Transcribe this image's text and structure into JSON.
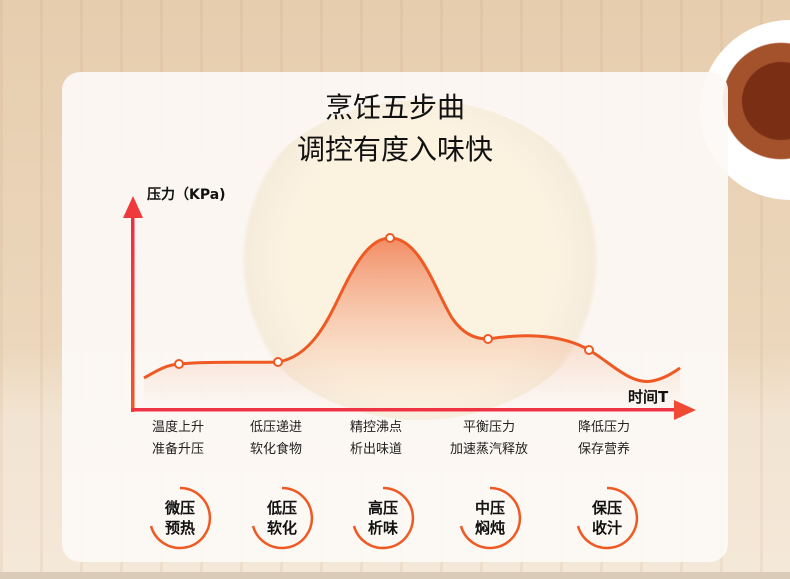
{
  "title": {
    "line1": "烹饪五步曲",
    "line2": "调控有度入味快"
  },
  "axes": {
    "y_label": "压力（KPa)",
    "x_label": "时间T"
  },
  "colors": {
    "curve": "#ef5a24",
    "axis": "#e8303a",
    "badge_arc": "#ef5a24"
  },
  "steps": [
    {
      "line1": "温度上升",
      "line2": "准备升压",
      "badge1": "微压",
      "badge2": "预热"
    },
    {
      "line1": "低压递进",
      "line2": "软化食物",
      "badge1": "低压",
      "badge2": "软化"
    },
    {
      "line1": "精控沸点",
      "line2": "析出味道",
      "badge1": "高压",
      "badge2": "析味"
    },
    {
      "line1": "平衡压力",
      "line2": "加速蒸汽释放",
      "badge1": "中压",
      "badge2": "焖炖"
    },
    {
      "line1": "降低压力",
      "line2": "保存营养",
      "badge1": "保压",
      "badge2": "收汁"
    }
  ]
}
